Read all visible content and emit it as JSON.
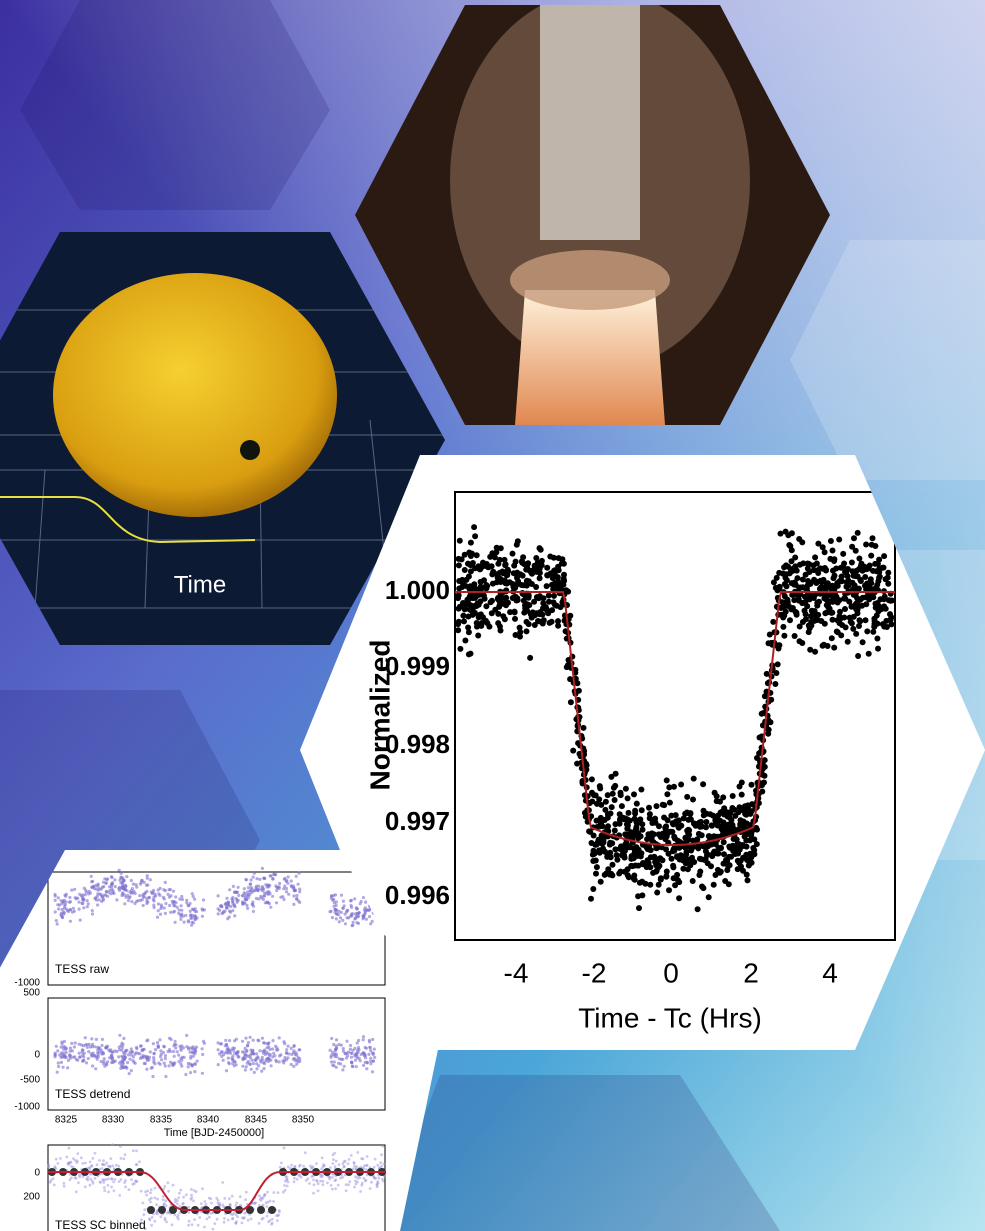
{
  "sun_panel": {
    "axis_label": "Time"
  },
  "transit_plot": {
    "y_label": "Normalized",
    "y_ticks": [
      "1.000",
      "0.999",
      "0.998",
      "0.997",
      "0.996"
    ],
    "x_ticks": [
      "-4",
      "-2",
      "0",
      "2",
      "4"
    ],
    "x_label": "Time - Tc (Hrs)"
  },
  "tess_plot": {
    "panels": [
      "TESS raw",
      "TESS detrend",
      "TESS SC binned"
    ],
    "y_ticks_raw": [
      "-1000"
    ],
    "y_ticks_detrend": [
      "500",
      "0",
      "-500",
      "-1000"
    ],
    "y_ticks_binned": [
      "0",
      "200"
    ],
    "x_ticks": [
      "8325",
      "8330",
      "8335",
      "8340",
      "8345",
      "8350"
    ],
    "x_label": "Time [BJD-2450000]"
  }
}
